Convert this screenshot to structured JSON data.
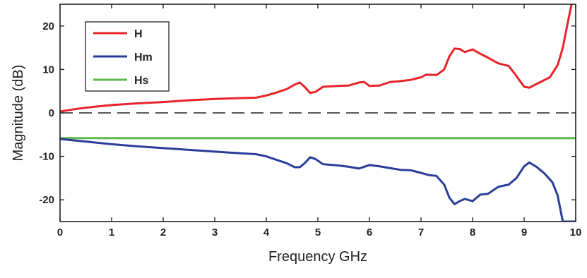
{
  "chart_data": {
    "type": "line",
    "title": "",
    "xlabel": "Frequency GHz",
    "ylabel": "Magnitude (dB)",
    "xlim": [
      0,
      10
    ],
    "ylim": [
      -25,
      25
    ],
    "xticks": [
      "0",
      "1",
      "2",
      "3",
      "4",
      "5",
      "6",
      "7",
      "8",
      "9",
      "10"
    ],
    "yticks": [
      "-20",
      "-10",
      "0",
      "10",
      "20"
    ],
    "grid": false,
    "legend_position": "top-left",
    "series": [
      {
        "name": "H",
        "color": "#e8242a",
        "points": [
          [
            0,
            0.3
          ],
          [
            0.25,
            0.8
          ],
          [
            0.5,
            1.2
          ],
          [
            1.0,
            1.8
          ],
          [
            1.5,
            2.2
          ],
          [
            2.0,
            2.5
          ],
          [
            2.5,
            2.9
          ],
          [
            3.0,
            3.2
          ],
          [
            3.5,
            3.4
          ],
          [
            3.8,
            3.5
          ],
          [
            4.0,
            4.0
          ],
          [
            4.2,
            4.7
          ],
          [
            4.4,
            5.5
          ],
          [
            4.55,
            6.5
          ],
          [
            4.65,
            7.0
          ],
          [
            4.75,
            5.9
          ],
          [
            4.85,
            4.6
          ],
          [
            4.95,
            4.8
          ],
          [
            5.1,
            6.0
          ],
          [
            5.4,
            6.2
          ],
          [
            5.6,
            6.3
          ],
          [
            5.8,
            7.0
          ],
          [
            5.9,
            7.1
          ],
          [
            6.0,
            6.2
          ],
          [
            6.2,
            6.3
          ],
          [
            6.4,
            7.1
          ],
          [
            6.6,
            7.3
          ],
          [
            6.8,
            7.6
          ],
          [
            7.0,
            8.2
          ],
          [
            7.1,
            8.8
          ],
          [
            7.3,
            8.7
          ],
          [
            7.45,
            10.0
          ],
          [
            7.55,
            13.0
          ],
          [
            7.65,
            14.8
          ],
          [
            7.75,
            14.7
          ],
          [
            7.85,
            14.0
          ],
          [
            8.0,
            14.6
          ],
          [
            8.15,
            13.6
          ],
          [
            8.3,
            12.7
          ],
          [
            8.5,
            11.4
          ],
          [
            8.7,
            10.8
          ],
          [
            8.85,
            8.5
          ],
          [
            9.0,
            6.0
          ],
          [
            9.1,
            5.8
          ],
          [
            9.3,
            7.0
          ],
          [
            9.5,
            8.2
          ],
          [
            9.65,
            11.0
          ],
          [
            9.75,
            15.0
          ],
          [
            9.85,
            21.0
          ],
          [
            9.92,
            25.0
          ]
        ]
      },
      {
        "name": "Hm",
        "color": "#2b3d9b",
        "points": [
          [
            0,
            -6.0
          ],
          [
            0.5,
            -6.6
          ],
          [
            1.0,
            -7.2
          ],
          [
            1.5,
            -7.7
          ],
          [
            2.0,
            -8.1
          ],
          [
            2.5,
            -8.5
          ],
          [
            3.0,
            -8.9
          ],
          [
            3.5,
            -9.3
          ],
          [
            3.8,
            -9.5
          ],
          [
            4.0,
            -10.0
          ],
          [
            4.2,
            -10.8
          ],
          [
            4.4,
            -11.6
          ],
          [
            4.55,
            -12.5
          ],
          [
            4.65,
            -12.5
          ],
          [
            4.75,
            -11.5
          ],
          [
            4.85,
            -10.2
          ],
          [
            4.95,
            -10.6
          ],
          [
            5.1,
            -11.8
          ],
          [
            5.4,
            -12.1
          ],
          [
            5.6,
            -12.4
          ],
          [
            5.8,
            -12.8
          ],
          [
            6.0,
            -12.0
          ],
          [
            6.2,
            -12.3
          ],
          [
            6.4,
            -12.7
          ],
          [
            6.6,
            -13.1
          ],
          [
            6.8,
            -13.2
          ],
          [
            7.0,
            -13.8
          ],
          [
            7.15,
            -14.3
          ],
          [
            7.3,
            -14.5
          ],
          [
            7.45,
            -16.5
          ],
          [
            7.55,
            -19.5
          ],
          [
            7.65,
            -21.0
          ],
          [
            7.75,
            -20.3
          ],
          [
            7.85,
            -19.8
          ],
          [
            8.0,
            -20.3
          ],
          [
            8.15,
            -18.8
          ],
          [
            8.3,
            -18.6
          ],
          [
            8.5,
            -17.0
          ],
          [
            8.7,
            -16.5
          ],
          [
            8.85,
            -15.0
          ],
          [
            9.0,
            -12.3
          ],
          [
            9.1,
            -11.4
          ],
          [
            9.25,
            -12.5
          ],
          [
            9.4,
            -14.0
          ],
          [
            9.55,
            -16.0
          ],
          [
            9.65,
            -19.0
          ],
          [
            9.75,
            -25.0
          ],
          [
            10.0,
            -25.0
          ]
        ]
      },
      {
        "name": "Hs",
        "color": "#5cb84c",
        "points": [
          [
            0,
            -5.8
          ],
          [
            10,
            -5.8
          ]
        ]
      }
    ],
    "reference_line": {
      "y": 0,
      "style": "dashed",
      "color": "#222222"
    }
  }
}
